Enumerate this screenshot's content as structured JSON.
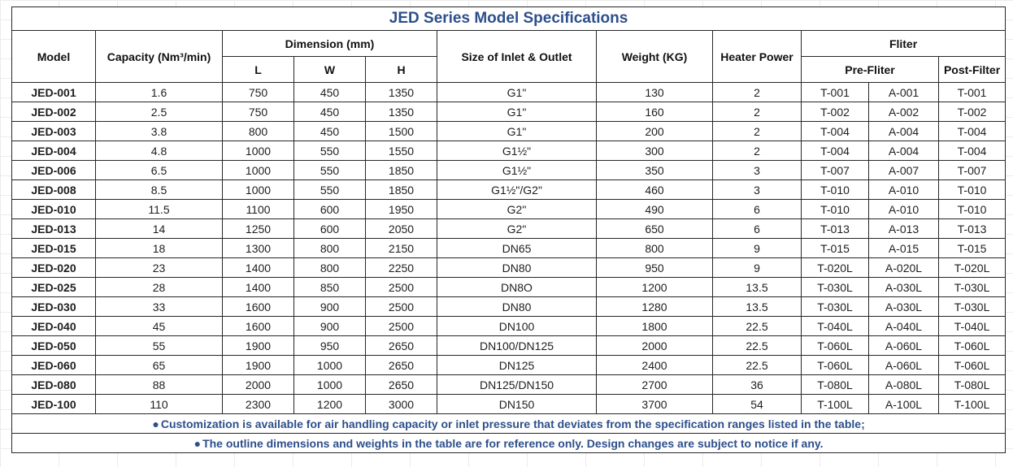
{
  "title": "JED Series Model Specifications",
  "headers": {
    "model": "Model",
    "capacity": "Capacity (Nm³/min)",
    "dimension": "Dimension (mm)",
    "l": "L",
    "w": "W",
    "h": "H",
    "inlet": "Size of Inlet & Outlet",
    "weight": "Weight (KG)",
    "heater": "Heater Power",
    "filter": "Fliter",
    "pre_filter": "Pre-Fliter",
    "post_filter": "Post-Filter"
  },
  "rows": [
    {
      "model": "JED-001",
      "capacity": "1.6",
      "l": "750",
      "w": "450",
      "h": "1350",
      "inlet": "G1\"",
      "weight": "130",
      "heater": "2",
      "pre1": "T-001",
      "pre2": "A-001",
      "post": "T-001"
    },
    {
      "model": "JED-002",
      "capacity": "2.5",
      "l": "750",
      "w": "450",
      "h": "1350",
      "inlet": "G1\"",
      "weight": "160",
      "heater": "2",
      "pre1": "T-002",
      "pre2": "A-002",
      "post": "T-002"
    },
    {
      "model": "JED-003",
      "capacity": "3.8",
      "l": "800",
      "w": "450",
      "h": "1500",
      "inlet": "G1\"",
      "weight": "200",
      "heater": "2",
      "pre1": "T-004",
      "pre2": "A-004",
      "post": "T-004"
    },
    {
      "model": "JED-004",
      "capacity": "4.8",
      "l": "1000",
      "w": "550",
      "h": "1550",
      "inlet": "G1½\"",
      "weight": "300",
      "heater": "2",
      "pre1": "T-004",
      "pre2": "A-004",
      "post": "T-004"
    },
    {
      "model": "JED-006",
      "capacity": "6.5",
      "l": "1000",
      "w": "550",
      "h": "1850",
      "inlet": "G1½\"",
      "weight": "350",
      "heater": "3",
      "pre1": "T-007",
      "pre2": "A-007",
      "post": "T-007"
    },
    {
      "model": "JED-008",
      "capacity": "8.5",
      "l": "1000",
      "w": "550",
      "h": "1850",
      "inlet": "G1½\"/G2\"",
      "weight": "460",
      "heater": "3",
      "pre1": "T-010",
      "pre2": "A-010",
      "post": "T-010"
    },
    {
      "model": "JED-010",
      "capacity": "11.5",
      "l": "1100",
      "w": "600",
      "h": "1950",
      "inlet": "G2\"",
      "weight": "490",
      "heater": "6",
      "pre1": "T-010",
      "pre2": "A-010",
      "post": "T-010"
    },
    {
      "model": "JED-013",
      "capacity": "14",
      "l": "1250",
      "w": "600",
      "h": "2050",
      "inlet": "G2\"",
      "weight": "650",
      "heater": "6",
      "pre1": "T-013",
      "pre2": "A-013",
      "post": "T-013"
    },
    {
      "model": "JED-015",
      "capacity": "18",
      "l": "1300",
      "w": "800",
      "h": "2150",
      "inlet": "DN65",
      "weight": "800",
      "heater": "9",
      "pre1": "T-015",
      "pre2": "A-015",
      "post": "T-015"
    },
    {
      "model": "JED-020",
      "capacity": "23",
      "l": "1400",
      "w": "800",
      "h": "2250",
      "inlet": "DN80",
      "weight": "950",
      "heater": "9",
      "pre1": "T-020L",
      "pre2": "A-020L",
      "post": "T-020L"
    },
    {
      "model": "JED-025",
      "capacity": "28",
      "l": "1400",
      "w": "850",
      "h": "2500",
      "inlet": "DN8O",
      "weight": "1200",
      "heater": "13.5",
      "pre1": "T-030L",
      "pre2": "A-030L",
      "post": "T-030L"
    },
    {
      "model": "JED-030",
      "capacity": "33",
      "l": "1600",
      "w": "900",
      "h": "2500",
      "inlet": "DN80",
      "weight": "1280",
      "heater": "13.5",
      "pre1": "T-030L",
      "pre2": "A-030L",
      "post": "T-030L"
    },
    {
      "model": "JED-040",
      "capacity": "45",
      "l": "1600",
      "w": "900",
      "h": "2500",
      "inlet": "DN100",
      "weight": "1800",
      "heater": "22.5",
      "pre1": "T-040L",
      "pre2": "A-040L",
      "post": "T-040L"
    },
    {
      "model": "JED-050",
      "capacity": "55",
      "l": "1900",
      "w": "950",
      "h": "2650",
      "inlet": "DN100/DN125",
      "weight": "2000",
      "heater": "22.5",
      "pre1": "T-060L",
      "pre2": "A-060L",
      "post": "T-060L"
    },
    {
      "model": "JED-060",
      "capacity": "65",
      "l": "1900",
      "w": "1000",
      "h": "2650",
      "inlet": "DN125",
      "weight": "2400",
      "heater": "22.5",
      "pre1": "T-060L",
      "pre2": "A-060L",
      "post": "T-060L"
    },
    {
      "model": "JED-080",
      "capacity": "88",
      "l": "2000",
      "w": "1000",
      "h": "2650",
      "inlet": "DN125/DN150",
      "weight": "2700",
      "heater": "36",
      "pre1": "T-080L",
      "pre2": "A-080L",
      "post": "T-080L"
    },
    {
      "model": "JED-100",
      "capacity": "110",
      "l": "2300",
      "w": "1200",
      "h": "3000",
      "inlet": "DN150",
      "weight": "3700",
      "heater": "54",
      "pre1": "T-100L",
      "pre2": "A-100L",
      "post": "T-100L"
    }
  ],
  "notes": [
    "Customization is available for air handling capacity or inlet pressure that deviates from the specification ranges listed in the table;",
    "The outline dimensions and weights in the table are for reference only. Design changes are subject to notice if any."
  ],
  "colors": {
    "title": "#2d4f8b",
    "notes": "#2d4f8b",
    "border": "#262626"
  }
}
